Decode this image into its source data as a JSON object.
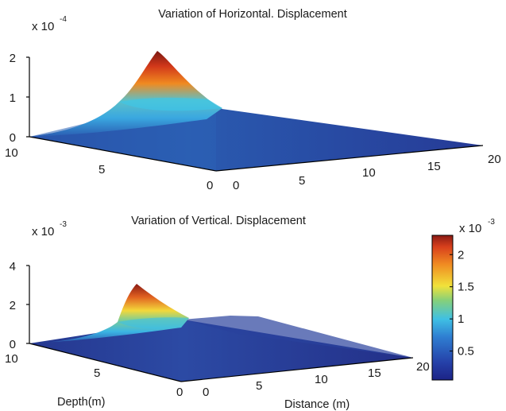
{
  "chart_data": [
    {
      "type": "surface",
      "title": "Variation of Horizontal. Displacement",
      "z_exponent_label": {
        "base": "x 10",
        "exp": "-4"
      },
      "z_ticks": [
        "0",
        "1",
        "2"
      ],
      "depth_ticks": [
        "0",
        "5",
        "10"
      ],
      "distance_ticks": [
        "0",
        "5",
        "10",
        "15",
        "20"
      ],
      "zlim": [
        0,
        0.00022
      ],
      "depth_range": [
        0,
        10
      ],
      "distance_range": [
        0,
        20
      ],
      "peak": {
        "distance": 0,
        "depth": 3.5,
        "value": 0.00021
      },
      "surface_points": [
        {
          "depth": 10,
          "distance": 0,
          "value": 0
        },
        {
          "depth": 10,
          "distance": 20,
          "value": 0
        },
        {
          "depth": 0,
          "distance": 20,
          "value": 0
        },
        {
          "depth": 0,
          "distance": 0,
          "value": 0
        },
        {
          "depth": 3.5,
          "distance": 0,
          "value": 0.00021
        },
        {
          "depth": 2.5,
          "distance": 0,
          "value": 0.00012
        },
        {
          "depth": 5,
          "distance": 0,
          "value": 9e-05
        }
      ],
      "colormap": "jet"
    },
    {
      "type": "surface",
      "title": "Variation of Vertical. Displacement",
      "z_exponent_label": {
        "base": "x 10",
        "exp": "-3"
      },
      "z_ticks": [
        "0",
        "2",
        "4"
      ],
      "depth_ticks": [
        "0",
        "5",
        "10"
      ],
      "distance_ticks": [
        "0",
        "5",
        "10",
        "15",
        "20"
      ],
      "xlabel": "Depth(m)",
      "ylabel": "Distance (m)",
      "zlim": [
        0,
        0.0042
      ],
      "depth_range": [
        0,
        10
      ],
      "distance_range": [
        0,
        20
      ],
      "peak": {
        "distance": 0,
        "depth": 5.5,
        "value": 0.0022
      },
      "surface_points": [
        {
          "depth": 10,
          "distance": 0,
          "value": 0
        },
        {
          "depth": 10,
          "distance": 20,
          "value": 0
        },
        {
          "depth": 0,
          "distance": 20,
          "value": 0
        },
        {
          "depth": 0,
          "distance": 0,
          "value": 0
        },
        {
          "depth": 5.5,
          "distance": 0,
          "value": 0.0022
        },
        {
          "depth": 4.5,
          "distance": 0,
          "value": 0.0012
        },
        {
          "depth": 7,
          "distance": 0,
          "value": 0.0007
        }
      ],
      "colormap": "jet"
    }
  ],
  "colorbar": {
    "exponent_label": {
      "base": "x 10",
      "exp": "-3"
    },
    "ticks": [
      "0.5",
      "1",
      "1.5",
      "2"
    ],
    "range": [
      0.05,
      2.3
    ],
    "colormap": "jet"
  }
}
